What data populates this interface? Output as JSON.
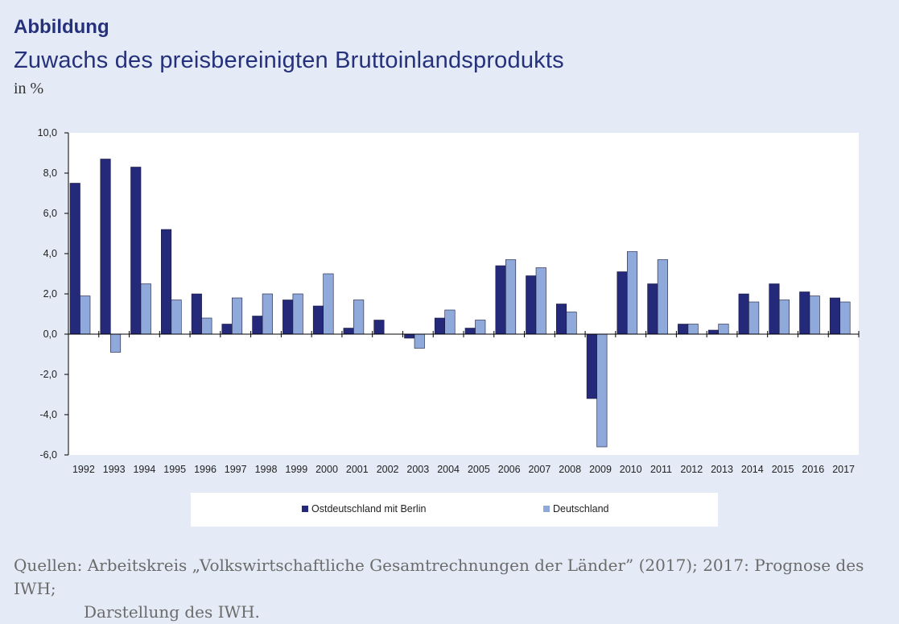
{
  "header": {
    "label": "Abbildung",
    "title": "Zuwachs des preisbereinigten Bruttoinlandsprodukts",
    "unit": "in %"
  },
  "source": {
    "line1": "Quellen: Arbeitskreis „Volkswirtschaftliche Gesamtrechnungen der Länder” (2017); 2017: Prognose des IWH;",
    "line2": "Darstellung des IWH."
  },
  "colors": {
    "ostdeutschland": "#25297a",
    "deutschland": "#8fa9db",
    "plot_background": "#ffffff",
    "page_background": "#e4ebf6"
  },
  "chart_data": {
    "type": "bar",
    "title": "Zuwachs des preisbereinigten Bruttoinlandsprodukts",
    "ylabel": "in %",
    "xlabel": "",
    "ylim": [
      -6.0,
      10.0
    ],
    "yticks": [
      "10,0",
      "8,0",
      "6,0",
      "4,0",
      "2,0",
      "0,0",
      "-2,0",
      "-4,0",
      "-6,0"
    ],
    "ytick_values": [
      10,
      8,
      6,
      4,
      2,
      0,
      -2,
      -4,
      -6
    ],
    "categories": [
      "1992",
      "1993",
      "1994",
      "1995",
      "1996",
      "1997",
      "1998",
      "1999",
      "2000",
      "2001",
      "2002",
      "2003",
      "2004",
      "2005",
      "2006",
      "2007",
      "2008",
      "2009",
      "2010",
      "2011",
      "2012",
      "2013",
      "2014",
      "2015",
      "2016",
      "2017"
    ],
    "series": [
      {
        "name": "Ostdeutschland mit Berlin",
        "values": [
          7.5,
          8.7,
          8.3,
          5.2,
          2.0,
          0.5,
          0.9,
          1.7,
          1.4,
          0.3,
          0.7,
          -0.2,
          0.8,
          0.3,
          3.4,
          2.9,
          1.5,
          -3.2,
          3.1,
          2.5,
          0.5,
          0.2,
          2.0,
          2.5,
          2.1,
          1.8
        ]
      },
      {
        "name": "Deutschland",
        "values": [
          1.9,
          -0.9,
          2.5,
          1.7,
          0.8,
          1.8,
          2.0,
          2.0,
          3.0,
          1.7,
          0.0,
          -0.7,
          1.2,
          0.7,
          3.7,
          3.3,
          1.1,
          -5.6,
          4.1,
          3.7,
          0.5,
          0.5,
          1.6,
          1.7,
          1.9,
          1.6
        ]
      }
    ],
    "grid": false,
    "legend_position": "bottom"
  }
}
